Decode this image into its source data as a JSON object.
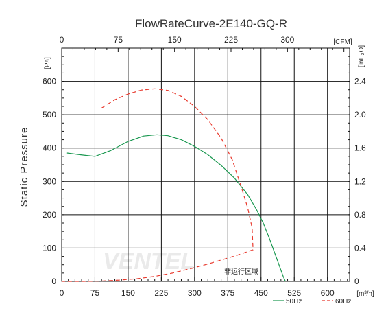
{
  "chart_data": {
    "type": "line",
    "title": "FlowRateCurve-2E140-GQ-R",
    "ylabel": "Static Pressure",
    "units": {
      "y_left": "[Pa]",
      "y_right": "[inH₂O]",
      "x_top": "[CFM]",
      "x_bottom": "[m³/h]"
    },
    "xlim": [
      0,
      650
    ],
    "ylim": [
      0,
      700
    ],
    "x_ticks": [
      "0",
      "75",
      "150",
      "225",
      "300",
      "375",
      "450",
      "525",
      "600"
    ],
    "y_left_ticks": [
      "0",
      "100",
      "200",
      "300",
      "400",
      "500",
      "600"
    ],
    "y_right_ticks": [
      "0",
      "0.4",
      "0.8",
      "1.2",
      "1.6",
      "2.0",
      "2.4"
    ],
    "top_ticks": [
      "0",
      "75",
      "150",
      "225",
      "300"
    ],
    "annotation": "非运行区域",
    "watermark": "VENTEL",
    "grid": true,
    "legend_position": "bottom-right",
    "series": [
      {
        "name": "50Hz",
        "color": "#1a9850",
        "dash": "solid",
        "points": [
          [
            12,
            385
          ],
          [
            40,
            380
          ],
          [
            75,
            375
          ],
          [
            110,
            392
          ],
          [
            150,
            420
          ],
          [
            185,
            436
          ],
          [
            215,
            440
          ],
          [
            240,
            437
          ],
          [
            270,
            425
          ],
          [
            300,
            405
          ],
          [
            330,
            380
          ],
          [
            360,
            348
          ],
          [
            390,
            310
          ],
          [
            420,
            260
          ],
          [
            440,
            215
          ],
          [
            455,
            175
          ],
          [
            470,
            125
          ],
          [
            485,
            70
          ],
          [
            500,
            15
          ],
          [
            505,
            0
          ]
        ]
      },
      {
        "name": "60Hz",
        "color": "#e8382c",
        "dash": "dashed",
        "points": [
          [
            90,
            520
          ],
          [
            120,
            545
          ],
          [
            150,
            562
          ],
          [
            180,
            574
          ],
          [
            210,
            578
          ],
          [
            240,
            573
          ],
          [
            270,
            555
          ],
          [
            300,
            525
          ],
          [
            330,
            485
          ],
          [
            360,
            430
          ],
          [
            385,
            365
          ],
          [
            405,
            285
          ],
          [
            420,
            220
          ],
          [
            430,
            160
          ],
          [
            432,
            95
          ],
          [
            400,
            80
          ],
          [
            370,
            68
          ],
          [
            330,
            52
          ],
          [
            290,
            38
          ],
          [
            250,
            25
          ],
          [
            210,
            15
          ],
          [
            170,
            8
          ],
          [
            130,
            4
          ],
          [
            90,
            1
          ],
          [
            50,
            0
          ],
          [
            0,
            0
          ]
        ]
      }
    ]
  }
}
